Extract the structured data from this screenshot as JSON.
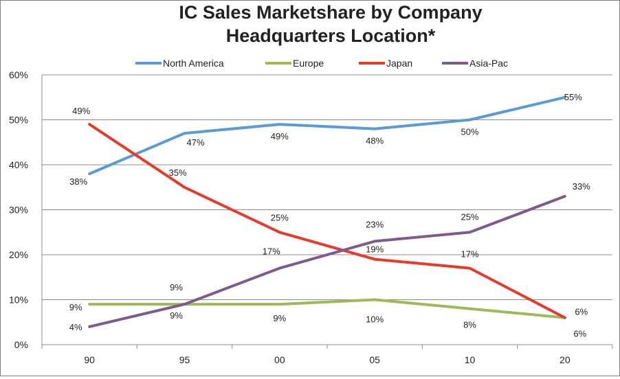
{
  "chart_data": {
    "type": "line",
    "title": "IC Sales Marketshare by Company Headquarters Location*",
    "title_lines": [
      "IC Sales Marketshare by Company",
      "Headquarters Location*"
    ],
    "categories": [
      "90",
      "95",
      "00",
      "05",
      "10",
      "20"
    ],
    "y_ticks": [
      "0%",
      "10%",
      "20%",
      "30%",
      "40%",
      "50%",
      "60%"
    ],
    "ylim": [
      0,
      60
    ],
    "grid": true,
    "legend_position": "top",
    "series": [
      {
        "name": "North America",
        "color": "#5b9bd5",
        "values": [
          38,
          47,
          49,
          48,
          50,
          55
        ],
        "labels": [
          "38%",
          "47%",
          "49%",
          "48%",
          "50%",
          "55%"
        ]
      },
      {
        "name": "Europe",
        "color": "#9bbb59",
        "values": [
          9,
          9,
          9,
          10,
          8,
          6
        ],
        "labels": [
          "9%",
          "9%",
          "9%",
          "10%",
          "8%",
          "6%"
        ]
      },
      {
        "name": "Japan",
        "color": "#e8392a",
        "values": [
          49,
          35,
          25,
          19,
          17,
          6
        ],
        "labels": [
          "49%",
          "35%",
          "25%",
          "19%",
          "17%",
          "6%"
        ]
      },
      {
        "name": "Asia-Pac",
        "color": "#7d5b8f",
        "values": [
          4,
          9,
          17,
          23,
          25,
          33
        ],
        "labels": [
          "4%",
          "9%",
          "17%",
          "23%",
          "25%",
          "33%"
        ]
      }
    ]
  }
}
